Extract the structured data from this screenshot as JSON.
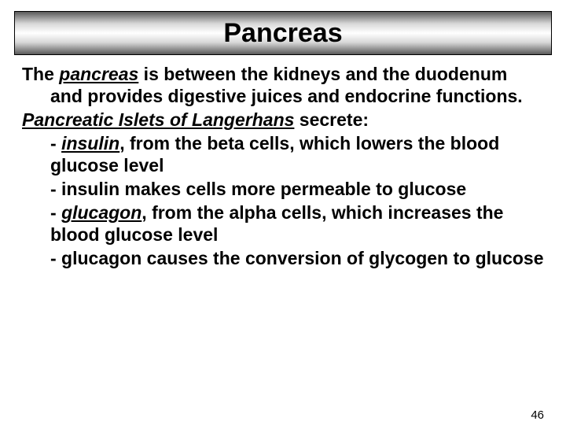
{
  "title": "Pancreas",
  "intro_lead": "The ",
  "intro_term": "pancreas",
  "intro_rest": " is between the kidneys and the duodenum and provides digestive juices and endocrine functions.",
  "sub_term": "Pancreatic Islets of Langerhans",
  "sub_rest": " secrete:",
  "b1_pre": " - ",
  "b1_term": "insulin",
  "b1_rest": ", from the beta cells, which lowers the blood glucose level",
  "b2": " - insulin makes cells more permeable to glucose",
  "b3_pre": " - ",
  "b3_term": "glucagon",
  "b3_rest": ", from the alpha cells, which increases the blood glucose level",
  "b4": "  - glucagon causes the conversion of glycogen to glucose",
  "page_number": "46"
}
